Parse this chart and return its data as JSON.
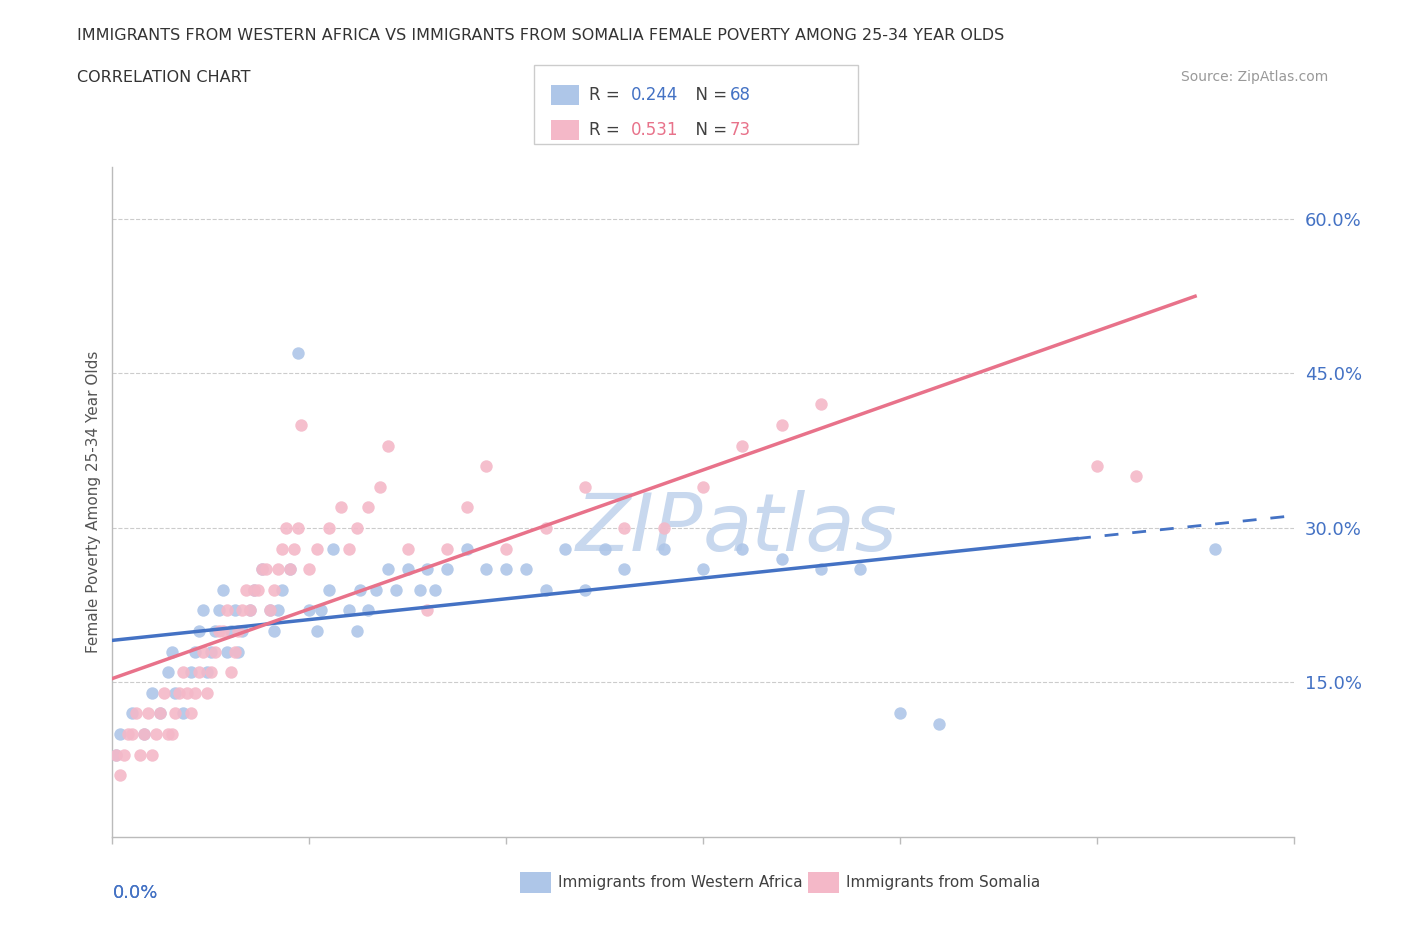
{
  "title_line1": "IMMIGRANTS FROM WESTERN AFRICA VS IMMIGRANTS FROM SOMALIA FEMALE POVERTY AMONG 25-34 YEAR OLDS",
  "title_line2": "CORRELATION CHART",
  "source_text": "Source: ZipAtlas.com",
  "ylabel": "Female Poverty Among 25-34 Year Olds",
  "ytick_vals": [
    0.15,
    0.3,
    0.45,
    0.6
  ],
  "ytick_labels": [
    "15.0%",
    "30.0%",
    "45.0%",
    "60.0%"
  ],
  "xlim": [
    0.0,
    0.3
  ],
  "ylim": [
    0.0,
    0.65
  ],
  "r_western": 0.244,
  "n_western": 68,
  "r_somalia": 0.531,
  "n_somalia": 73,
  "color_western": "#aec6e8",
  "color_somalia": "#f4b8c8",
  "color_western_line": "#4472c4",
  "color_somalia_line": "#e8728a",
  "color_text_blue": "#4472c4",
  "color_text_pink": "#e8728a",
  "color_text_dark": "#404040",
  "watermark_color": "#c8d8ee",
  "legend_label_western": "Immigrants from Western Africa",
  "legend_label_somalia": "Immigrants from Somalia",
  "western_scatter_x": [
    0.001,
    0.002,
    0.005,
    0.008,
    0.01,
    0.012,
    0.014,
    0.015,
    0.016,
    0.018,
    0.02,
    0.021,
    0.022,
    0.023,
    0.024,
    0.025,
    0.026,
    0.027,
    0.028,
    0.029,
    0.03,
    0.031,
    0.032,
    0.033,
    0.035,
    0.036,
    0.038,
    0.04,
    0.041,
    0.042,
    0.043,
    0.045,
    0.047,
    0.05,
    0.052,
    0.053,
    0.055,
    0.056,
    0.06,
    0.062,
    0.063,
    0.065,
    0.067,
    0.07,
    0.072,
    0.075,
    0.078,
    0.08,
    0.082,
    0.085,
    0.09,
    0.095,
    0.1,
    0.105,
    0.11,
    0.115,
    0.12,
    0.125,
    0.13,
    0.14,
    0.15,
    0.16,
    0.17,
    0.18,
    0.19,
    0.2,
    0.21,
    0.28
  ],
  "western_scatter_y": [
    0.08,
    0.1,
    0.12,
    0.1,
    0.14,
    0.12,
    0.16,
    0.18,
    0.14,
    0.12,
    0.16,
    0.18,
    0.2,
    0.22,
    0.16,
    0.18,
    0.2,
    0.22,
    0.24,
    0.18,
    0.2,
    0.22,
    0.18,
    0.2,
    0.22,
    0.24,
    0.26,
    0.22,
    0.2,
    0.22,
    0.24,
    0.26,
    0.47,
    0.22,
    0.2,
    0.22,
    0.24,
    0.28,
    0.22,
    0.2,
    0.24,
    0.22,
    0.24,
    0.26,
    0.24,
    0.26,
    0.24,
    0.26,
    0.24,
    0.26,
    0.28,
    0.26,
    0.26,
    0.26,
    0.24,
    0.28,
    0.24,
    0.28,
    0.26,
    0.28,
    0.26,
    0.28,
    0.27,
    0.26,
    0.26,
    0.12,
    0.11,
    0.28
  ],
  "somalia_scatter_x": [
    0.001,
    0.002,
    0.003,
    0.004,
    0.005,
    0.006,
    0.007,
    0.008,
    0.009,
    0.01,
    0.011,
    0.012,
    0.013,
    0.014,
    0.015,
    0.016,
    0.017,
    0.018,
    0.019,
    0.02,
    0.021,
    0.022,
    0.023,
    0.024,
    0.025,
    0.026,
    0.027,
    0.028,
    0.029,
    0.03,
    0.031,
    0.032,
    0.033,
    0.034,
    0.035,
    0.036,
    0.037,
    0.038,
    0.039,
    0.04,
    0.041,
    0.042,
    0.043,
    0.044,
    0.045,
    0.046,
    0.047,
    0.048,
    0.05,
    0.052,
    0.055,
    0.058,
    0.06,
    0.062,
    0.065,
    0.068,
    0.07,
    0.075,
    0.08,
    0.085,
    0.09,
    0.095,
    0.1,
    0.11,
    0.12,
    0.13,
    0.14,
    0.15,
    0.16,
    0.17,
    0.18,
    0.25,
    0.26
  ],
  "somalia_scatter_y": [
    0.08,
    0.06,
    0.08,
    0.1,
    0.1,
    0.12,
    0.08,
    0.1,
    0.12,
    0.08,
    0.1,
    0.12,
    0.14,
    0.1,
    0.1,
    0.12,
    0.14,
    0.16,
    0.14,
    0.12,
    0.14,
    0.16,
    0.18,
    0.14,
    0.16,
    0.18,
    0.2,
    0.2,
    0.22,
    0.16,
    0.18,
    0.2,
    0.22,
    0.24,
    0.22,
    0.24,
    0.24,
    0.26,
    0.26,
    0.22,
    0.24,
    0.26,
    0.28,
    0.3,
    0.26,
    0.28,
    0.3,
    0.4,
    0.26,
    0.28,
    0.3,
    0.32,
    0.28,
    0.3,
    0.32,
    0.34,
    0.38,
    0.28,
    0.22,
    0.28,
    0.32,
    0.36,
    0.28,
    0.3,
    0.34,
    0.3,
    0.3,
    0.34,
    0.38,
    0.4,
    0.42,
    0.36,
    0.35
  ]
}
